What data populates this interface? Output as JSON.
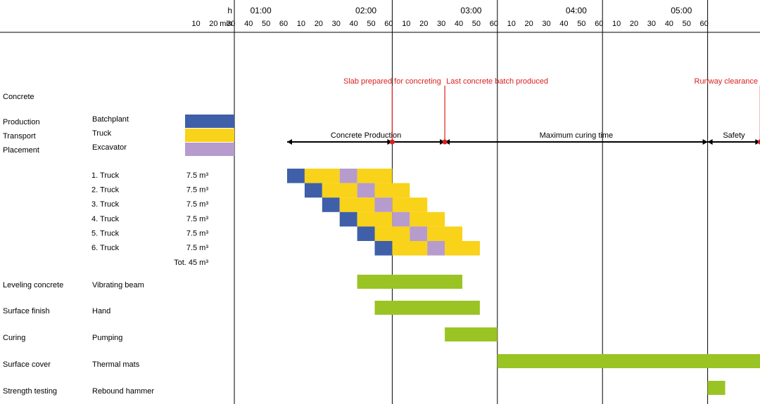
{
  "chart_data": {
    "type": "gantt",
    "time_header": {
      "hour_label": "h",
      "minute_label": "min",
      "hours": [
        "01:00",
        "02:00",
        "03:00",
        "04:00",
        "05:00"
      ],
      "minute_ticks": [
        "10",
        "20",
        "30",
        "40",
        "50",
        "60"
      ]
    },
    "colors": {
      "production": "#3f5fa8",
      "transport": "#f9d21a",
      "placement": "#b69bcd",
      "activity": "#9ac423",
      "milestone": "#d9201f",
      "arrow": "#000000",
      "grid": "#000000"
    },
    "section_title": "Concrete",
    "legend": [
      {
        "category": "Production",
        "equipment": "Batchplant",
        "color_key": "production"
      },
      {
        "category": "Transport",
        "equipment": "Truck",
        "color_key": "transport"
      },
      {
        "category": "Placement",
        "equipment": "Excavator",
        "color_key": "placement"
      }
    ],
    "milestones": [
      {
        "label": "Slab prepared for concreting",
        "time_min": 60
      },
      {
        "label": "Last concrete batch produced",
        "time_min": 90
      },
      {
        "label": "Runway clearance",
        "time_min": 270
      }
    ],
    "phases": [
      {
        "label": "Concrete Production",
        "start_min": 0,
        "end_min": 60,
        "end2_min": 90
      },
      {
        "label": "Maximum curing time",
        "start_min": 90,
        "end_min": 240
      },
      {
        "label": "Safety",
        "start_min": 240,
        "end_min": 270
      }
    ],
    "trucks": [
      {
        "label": "1. Truck",
        "volume": "7.5 m³",
        "segments": [
          {
            "type": "production",
            "start_min": 0,
            "end_min": 10
          },
          {
            "type": "transport",
            "start_min": 10,
            "end_min": 30
          },
          {
            "type": "placement",
            "start_min": 30,
            "end_min": 40
          },
          {
            "type": "transport",
            "start_min": 40,
            "end_min": 60
          }
        ]
      },
      {
        "label": "2. Truck",
        "volume": "7.5 m³",
        "segments": [
          {
            "type": "production",
            "start_min": 10,
            "end_min": 20
          },
          {
            "type": "transport",
            "start_min": 20,
            "end_min": 40
          },
          {
            "type": "placement",
            "start_min": 40,
            "end_min": 50
          },
          {
            "type": "transport",
            "start_min": 50,
            "end_min": 70
          }
        ]
      },
      {
        "label": "3. Truck",
        "volume": "7.5 m³",
        "segments": [
          {
            "type": "production",
            "start_min": 20,
            "end_min": 30
          },
          {
            "type": "transport",
            "start_min": 30,
            "end_min": 50
          },
          {
            "type": "placement",
            "start_min": 50,
            "end_min": 60
          },
          {
            "type": "transport",
            "start_min": 60,
            "end_min": 80
          }
        ]
      },
      {
        "label": "4. Truck",
        "volume": "7.5 m³",
        "segments": [
          {
            "type": "production",
            "start_min": 30,
            "end_min": 40
          },
          {
            "type": "transport",
            "start_min": 40,
            "end_min": 60
          },
          {
            "type": "placement",
            "start_min": 60,
            "end_min": 70
          },
          {
            "type": "transport",
            "start_min": 70,
            "end_min": 90
          }
        ]
      },
      {
        "label": "5. Truck",
        "volume": "7.5 m³",
        "segments": [
          {
            "type": "production",
            "start_min": 40,
            "end_min": 50
          },
          {
            "type": "transport",
            "start_min": 50,
            "end_min": 70
          },
          {
            "type": "placement",
            "start_min": 70,
            "end_min": 80
          },
          {
            "type": "transport",
            "start_min": 80,
            "end_min": 100
          }
        ]
      },
      {
        "label": "6. Truck",
        "volume": "7.5 m³",
        "segments": [
          {
            "type": "production",
            "start_min": 50,
            "end_min": 60
          },
          {
            "type": "transport",
            "start_min": 60,
            "end_min": 80
          },
          {
            "type": "placement",
            "start_min": 80,
            "end_min": 90
          },
          {
            "type": "transport",
            "start_min": 90,
            "end_min": 110
          }
        ]
      }
    ],
    "total_volume": "Tot. 45 m³",
    "activities": [
      {
        "activity": "Leveling concrete",
        "equipment": "Vibrating beam",
        "start_min": 40,
        "end_min": 100
      },
      {
        "activity": "Surface finish",
        "equipment": "Hand",
        "start_min": 50,
        "end_min": 110
      },
      {
        "activity": "Curing",
        "equipment": "Pumping",
        "start_min": 90,
        "end_min": 120
      },
      {
        "activity": "Surface cover",
        "equipment": "Thermal mats",
        "start_min": 120,
        "end_min": 270
      },
      {
        "activity": "Strength testing",
        "equipment": "Rebound hammer",
        "start_min": 240,
        "end_min": 250
      }
    ]
  }
}
